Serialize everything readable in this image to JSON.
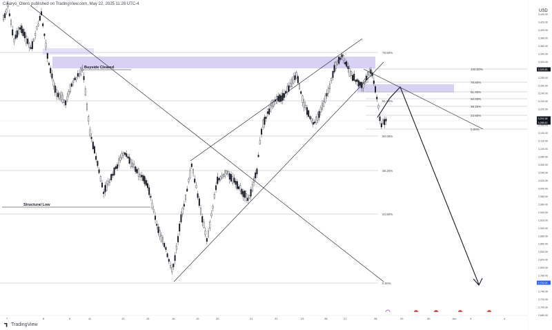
{
  "header": {
    "publisher_line": "Cikaryo_Olens published on TradingView.com, May 22, 2025 11:28 UTC-4"
  },
  "branding": {
    "logo_text": "TradingView"
  },
  "price_axis": {
    "currency": "USD",
    "ticks": [
      "3,440.00",
      "3,420.00",
      "3,400.00",
      "3,380.00",
      "3,360.00",
      "3,340.00",
      "3,320.00",
      "3,300.00",
      "3,280.00",
      "3,260.00",
      "3,240.00",
      "3,220.00",
      "3,200.00",
      "3,180.00",
      "3,160.00",
      "3,140.00",
      "3,120.00",
      "3,100.00",
      "3,080.00",
      "3,060.00",
      "3,040.00",
      "3,020.00",
      "3,000.00",
      "2,980.00",
      "2,960.00",
      "2,940.00",
      "2,920.00",
      "2,900.00",
      "2,880.00",
      "2,860.00",
      "2,840.00",
      "2,820.00",
      "2,800.00",
      "2,780.00",
      "2,760.00",
      "2,740.00",
      "2,720.00",
      "2,700.00",
      "2,680.00"
    ],
    "badges": [
      {
        "label": "3,325.55",
        "color": "#131722"
      },
      {
        "label": "3,291.58",
        "color": "#131722"
      },
      {
        "label": "3,288.62",
        "color": "#131722"
      },
      {
        "label": "2,700.00",
        "color": "#2962ff"
      }
    ]
  },
  "time_axis": {
    "ticks": [
      "7",
      "8",
      "9",
      "11",
      "13",
      "15",
      "16",
      "19",
      "20",
      "21",
      "22",
      "23",
      "26",
      "27",
      "28",
      "29",
      "30",
      "Jun",
      "3",
      "4"
    ]
  },
  "chart_data": {
    "type": "candlestick",
    "title": "",
    "annotations": {
      "buyside_label": "Buyside Cleared",
      "structural_label": "Structural Low",
      "fib_levels_left": [
        "78.60%",
        "61.80%",
        "50.00%",
        "38.20%",
        "23.60%",
        "0.00%"
      ],
      "fib_levels_right": [
        "100.00%",
        "78.60%",
        "61.80%",
        "50.00%",
        "38.20%",
        "23.60%",
        "0.00%"
      ]
    },
    "colors": {
      "zone": "#d4ccf2",
      "candle_up": "#ffffff",
      "candle_down": "#131722",
      "line": "#131722",
      "level": "#b2b5be"
    }
  }
}
